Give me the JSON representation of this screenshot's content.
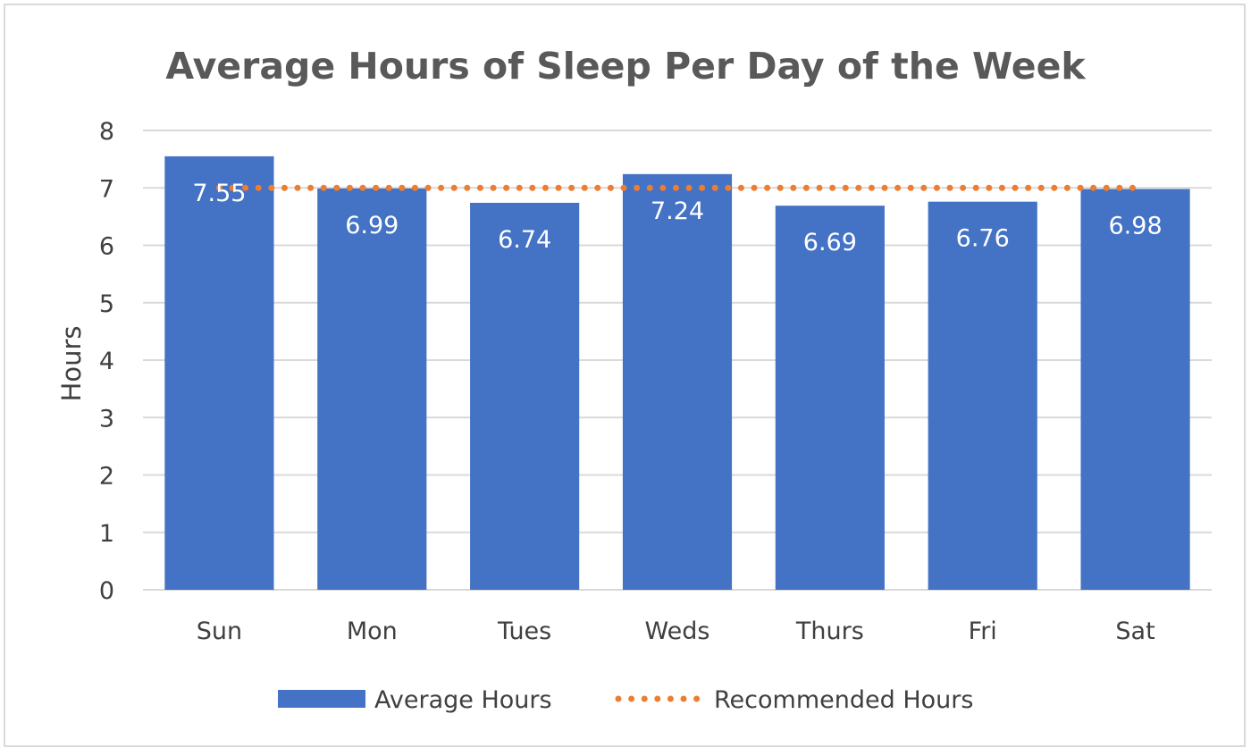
{
  "chart_data": {
    "type": "bar",
    "title": "Average Hours of Sleep Per Day of the Week",
    "xlabel": "",
    "ylabel": "Hours",
    "ylim": [
      0,
      8
    ],
    "yticks": [
      "0",
      "1",
      "2",
      "3",
      "4",
      "5",
      "6",
      "7",
      "8"
    ],
    "categories": [
      "Sun",
      "Mon",
      "Tues",
      "Weds",
      "Thurs",
      "Fri",
      "Sat"
    ],
    "series": [
      {
        "name": "Average Hours",
        "type": "bar",
        "color": "#4472c4",
        "values": [
          7.55,
          6.99,
          6.74,
          7.24,
          6.69,
          6.76,
          6.98
        ],
        "data_labels": [
          "7.55",
          "6.99",
          "6.74",
          "7.24",
          "6.69",
          "6.76",
          "6.98"
        ]
      },
      {
        "name": "Recommended Hours",
        "type": "line",
        "style": "dotted",
        "color": "#ed7d31",
        "values": [
          7,
          7,
          7,
          7,
          7,
          7,
          7
        ]
      }
    ],
    "grid": true,
    "legend_position": "bottom"
  }
}
